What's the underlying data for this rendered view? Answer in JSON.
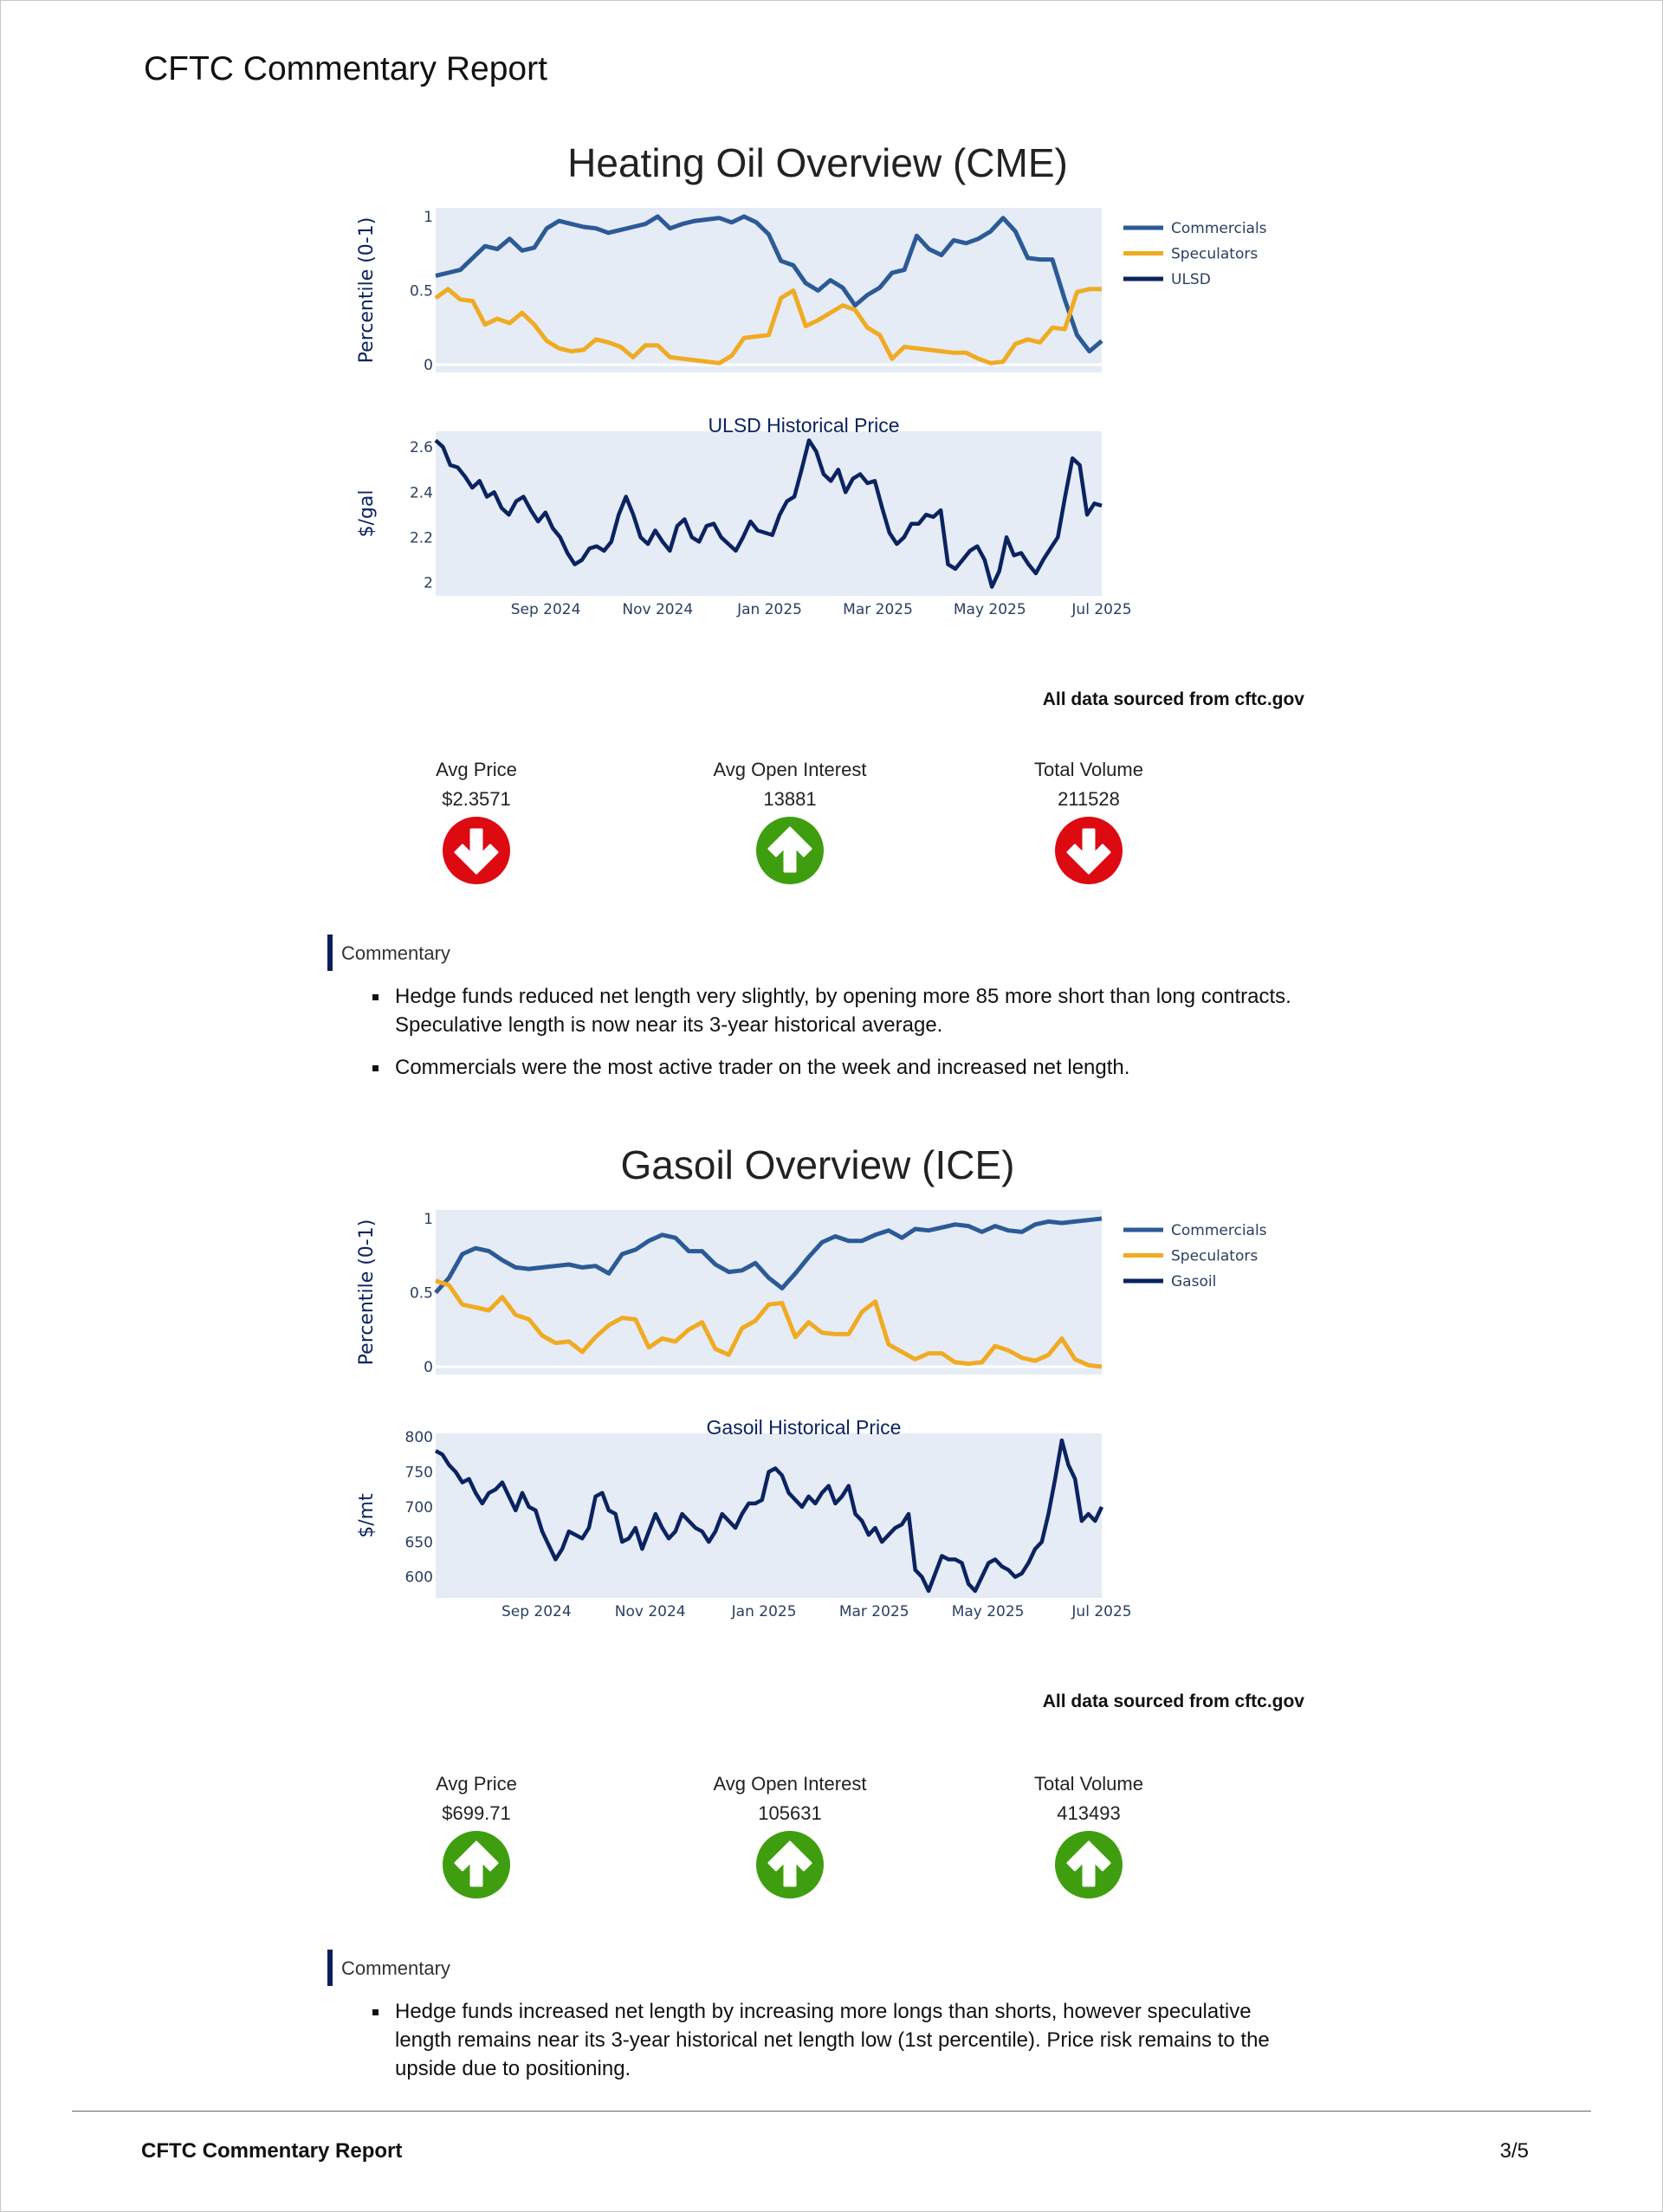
{
  "header": {
    "title": "CFTC Commentary Report"
  },
  "colors": {
    "commercials": "#2c5a96",
    "speculators": "#f0ab23",
    "price": "#0b2360",
    "plot_bg": "#e5ecf6",
    "down": "#dd0a12",
    "up": "#3f9e0f"
  },
  "sections": [
    {
      "source_note": "All data sourced from cftc.gov",
      "indicators": [
        {
          "label": "Avg Price",
          "value": "$2.3571",
          "direction": "down"
        },
        {
          "label": "Avg Open Interest",
          "value": "13881",
          "direction": "up"
        },
        {
          "label": "Total Volume",
          "value": "211528",
          "direction": "down"
        }
      ],
      "commentary_title": "Commentary",
      "commentary": [
        "Hedge funds reduced net length very slightly, by opening more 85 more short than long contracts. Speculative length is now near its 3-year historical average.",
        "Commercials were the most active trader on the week and increased net length."
      ]
    },
    {
      "source_note": "All data sourced from cftc.gov",
      "indicators": [
        {
          "label": "Avg Price",
          "value": "$699.71",
          "direction": "up"
        },
        {
          "label": "Avg Open Interest",
          "value": "105631",
          "direction": "up"
        },
        {
          "label": "Total Volume",
          "value": "413493",
          "direction": "up"
        }
      ],
      "commentary_title": "Commentary",
      "commentary": [
        "Hedge funds increased net length by increasing more longs than shorts, however speculative length remains near its 3-year historical net length low (1st percentile). Price risk remains to the upside due to positioning."
      ]
    }
  ],
  "chart_data": [
    {
      "type": "line",
      "title": "Heating Oil Overview (CME)",
      "x_range": [
        "2024-07-03",
        "2025-07-01"
      ],
      "x_ticks": [
        [
          "2024-09-01",
          "Sep 2024"
        ],
        [
          "2024-11-01",
          "Nov 2024"
        ],
        [
          "2025-01-01",
          "Jan 2025"
        ],
        [
          "2025-03-01",
          "Mar 2025"
        ],
        [
          "2025-05-01",
          "May 2025"
        ],
        [
          "2025-07-01",
          "Jul 2025"
        ]
      ],
      "percentile": {
        "ylabel": "Percentile (0-1)",
        "ylim": [
          0,
          1
        ],
        "y_ticks": [
          0,
          0.5,
          1
        ],
        "y_tick_labels": [
          "0",
          "0.5",
          "1"
        ],
        "series": [
          {
            "name": "Commercials",
            "values": [
              0.6,
              0.62,
              0.64,
              0.72,
              0.8,
              0.78,
              0.85,
              0.77,
              0.79,
              0.92,
              0.97,
              0.95,
              0.93,
              0.92,
              0.89,
              0.91,
              0.93,
              0.95,
              1.0,
              0.92,
              0.95,
              0.97,
              0.98,
              0.99,
              0.96,
              1.0,
              0.96,
              0.88,
              0.7,
              0.67,
              0.55,
              0.5,
              0.57,
              0.52,
              0.4,
              0.47,
              0.52,
              0.62,
              0.64,
              0.87,
              0.78,
              0.74,
              0.84,
              0.82,
              0.85,
              0.9,
              0.99,
              0.9,
              0.72,
              0.71,
              0.71,
              0.44,
              0.2,
              0.09,
              0.16
            ]
          },
          {
            "name": "Speculators",
            "values": [
              0.45,
              0.51,
              0.44,
              0.43,
              0.27,
              0.31,
              0.28,
              0.35,
              0.27,
              0.16,
              0.11,
              0.09,
              0.1,
              0.17,
              0.15,
              0.12,
              0.05,
              0.13,
              0.13,
              0.05,
              0.04,
              0.03,
              0.02,
              0.01,
              0.06,
              0.18,
              0.19,
              0.2,
              0.45,
              0.5,
              0.26,
              0.3,
              0.35,
              0.4,
              0.37,
              0.25,
              0.2,
              0.04,
              0.12,
              0.11,
              0.1,
              0.09,
              0.08,
              0.08,
              0.04,
              0.01,
              0.02,
              0.14,
              0.17,
              0.15,
              0.25,
              0.24,
              0.49,
              0.51,
              0.51
            ]
          }
        ],
        "legend": [
          "Commercials",
          "Speculators",
          "ULSD"
        ]
      },
      "price": {
        "title": "ULSD Historical Price",
        "ylabel": "$/gal",
        "ylim": [
          1.94,
          2.67
        ],
        "y_ticks": [
          2,
          2.2,
          2.4,
          2.6
        ],
        "y_tick_labels": [
          "2",
          "2.2",
          "2.4",
          "2.6"
        ],
        "values": [
          2.63,
          2.6,
          2.52,
          2.51,
          2.47,
          2.42,
          2.45,
          2.38,
          2.4,
          2.33,
          2.3,
          2.36,
          2.38,
          2.32,
          2.27,
          2.31,
          2.24,
          2.2,
          2.13,
          2.08,
          2.1,
          2.15,
          2.16,
          2.14,
          2.18,
          2.3,
          2.38,
          2.3,
          2.2,
          2.17,
          2.23,
          2.18,
          2.14,
          2.25,
          2.28,
          2.2,
          2.18,
          2.25,
          2.26,
          2.2,
          2.17,
          2.14,
          2.2,
          2.27,
          2.23,
          2.22,
          2.21,
          2.3,
          2.36,
          2.38,
          2.5,
          2.63,
          2.58,
          2.48,
          2.45,
          2.5,
          2.4,
          2.46,
          2.48,
          2.44,
          2.45,
          2.33,
          2.22,
          2.17,
          2.2,
          2.26,
          2.26,
          2.3,
          2.29,
          2.32,
          2.08,
          2.06,
          2.1,
          2.14,
          2.16,
          2.1,
          1.98,
          2.05,
          2.2,
          2.12,
          2.13,
          2.08,
          2.04,
          2.1,
          2.15,
          2.2,
          2.38,
          2.55,
          2.52,
          2.3,
          2.35,
          2.34
        ]
      }
    },
    {
      "type": "line",
      "title": "Gasoil Overview (ICE)",
      "x_range": [
        "2024-07-09",
        "2025-07-01"
      ],
      "x_ticks": [
        [
          "2024-09-01",
          "Sep 2024"
        ],
        [
          "2024-11-01",
          "Nov 2024"
        ],
        [
          "2025-01-01",
          "Jan 2025"
        ],
        [
          "2025-03-01",
          "Mar 2025"
        ],
        [
          "2025-05-01",
          "May 2025"
        ],
        [
          "2025-07-01",
          "Jul 2025"
        ]
      ],
      "percentile": {
        "ylabel": "Percentile (0-1)",
        "ylim": [
          0,
          1
        ],
        "y_ticks": [
          0,
          0.5,
          1
        ],
        "y_tick_labels": [
          "0",
          "0.5",
          "1"
        ],
        "series": [
          {
            "name": "Commercials",
            "values": [
              0.5,
              0.6,
              0.76,
              0.8,
              0.78,
              0.72,
              0.67,
              0.66,
              0.67,
              0.68,
              0.69,
              0.67,
              0.68,
              0.63,
              0.76,
              0.79,
              0.85,
              0.89,
              0.87,
              0.78,
              0.78,
              0.69,
              0.64,
              0.65,
              0.7,
              0.6,
              0.53,
              0.63,
              0.74,
              0.84,
              0.88,
              0.85,
              0.85,
              0.89,
              0.92,
              0.87,
              0.93,
              0.92,
              0.94,
              0.96,
              0.95,
              0.91,
              0.95,
              0.92,
              0.91,
              0.96,
              0.98,
              0.97,
              0.98,
              0.99,
              1.0
            ]
          },
          {
            "name": "Speculators",
            "values": [
              0.58,
              0.55,
              0.42,
              0.4,
              0.38,
              0.47,
              0.35,
              0.32,
              0.21,
              0.16,
              0.17,
              0.1,
              0.2,
              0.28,
              0.33,
              0.32,
              0.13,
              0.19,
              0.17,
              0.25,
              0.3,
              0.12,
              0.08,
              0.26,
              0.31,
              0.42,
              0.43,
              0.2,
              0.3,
              0.23,
              0.22,
              0.22,
              0.37,
              0.44,
              0.15,
              0.1,
              0.05,
              0.09,
              0.09,
              0.03,
              0.02,
              0.03,
              0.14,
              0.11,
              0.06,
              0.04,
              0.08,
              0.19,
              0.05,
              0.01,
              0.0
            ]
          }
        ],
        "legend": [
          "Commercials",
          "Speculators",
          "Gasoil"
        ]
      },
      "price": {
        "title": "Gasoil Historical Price",
        "ylabel": "$/mt",
        "ylim": [
          570,
          805
        ],
        "y_ticks": [
          600,
          650,
          700,
          750,
          800
        ],
        "y_tick_labels": [
          "600",
          "650",
          "700",
          "750",
          "800"
        ],
        "values": [
          780,
          775,
          760,
          750,
          735,
          740,
          720,
          705,
          720,
          725,
          735,
          715,
          695,
          720,
          700,
          695,
          665,
          645,
          625,
          640,
          665,
          660,
          655,
          670,
          715,
          720,
          695,
          690,
          650,
          655,
          670,
          640,
          665,
          690,
          670,
          655,
          665,
          690,
          680,
          670,
          665,
          650,
          665,
          690,
          680,
          670,
          690,
          705,
          705,
          710,
          750,
          755,
          745,
          720,
          710,
          700,
          715,
          705,
          720,
          730,
          705,
          715,
          730,
          690,
          680,
          660,
          670,
          650,
          660,
          670,
          675,
          690,
          610,
          600,
          580,
          605,
          630,
          625,
          625,
          620,
          590,
          580,
          600,
          620,
          625,
          615,
          610,
          600,
          605,
          620,
          640,
          650,
          690,
          740,
          795,
          760,
          740,
          680,
          690,
          680,
          700
        ]
      }
    }
  ],
  "footer": {
    "title": "CFTC Commentary Report",
    "page": "3/5"
  }
}
